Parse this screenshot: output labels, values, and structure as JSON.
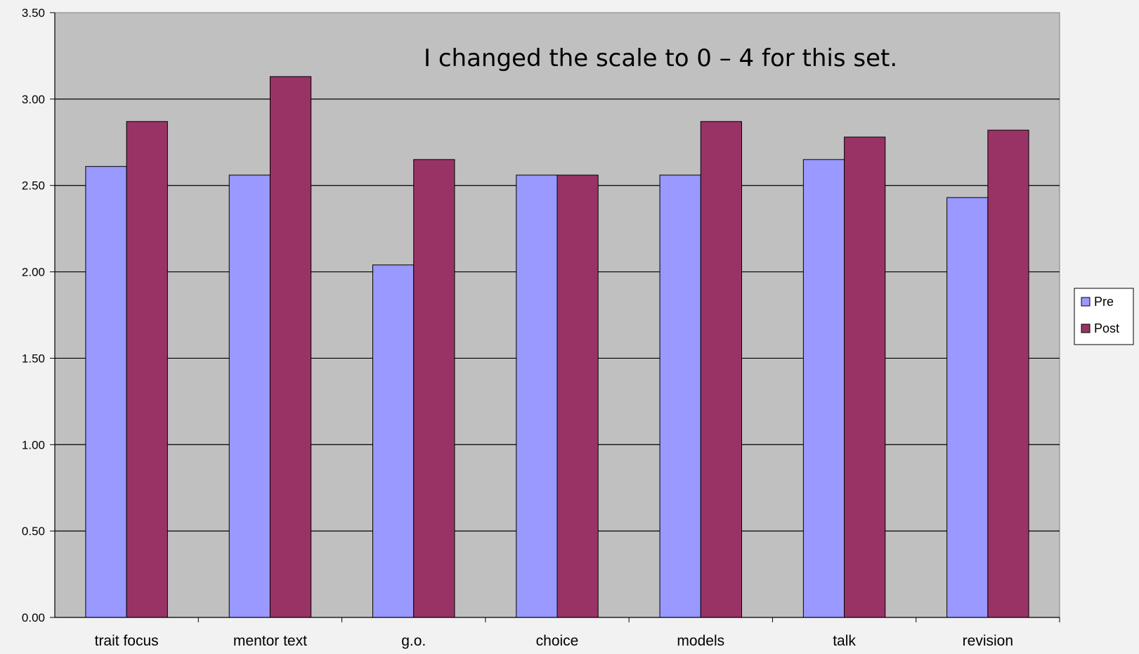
{
  "chart_data": {
    "type": "bar",
    "categories": [
      "trait focus",
      "mentor text",
      "g.o.",
      "choice",
      "models",
      "talk",
      "revision"
    ],
    "series": [
      {
        "name": "Pre",
        "values": [
          2.61,
          2.56,
          2.04,
          2.56,
          2.56,
          2.65,
          2.43
        ],
        "color": "#9999ff"
      },
      {
        "name": "Post",
        "values": [
          2.87,
          3.13,
          2.65,
          2.56,
          2.87,
          2.78,
          2.82
        ],
        "color": "#993366"
      }
    ],
    "ylim": [
      0,
      3.5
    ],
    "yticks": [
      "0.00",
      "0.50",
      "1.00",
      "1.50",
      "2.00",
      "2.50",
      "3.00",
      "3.50"
    ],
    "annotation": "I changed the scale to 0 – 4 for this set.",
    "legend_position": "right",
    "grid": true,
    "plot_background": "#c0c0c0",
    "page_background": "#f2f2f2"
  }
}
